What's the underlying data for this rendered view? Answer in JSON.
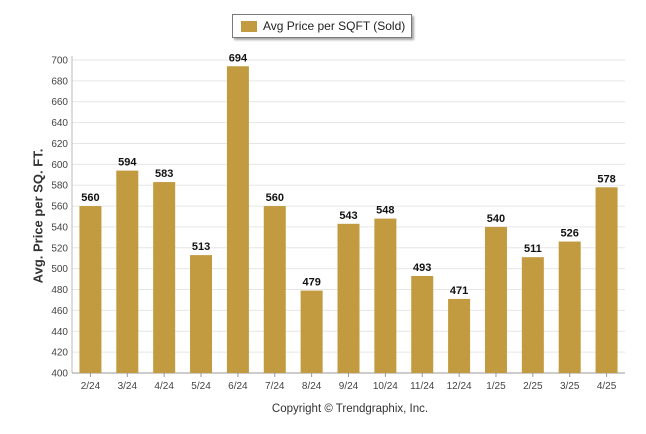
{
  "legend": {
    "label": "Avg Price per SQFT (Sold)",
    "color": "#C29A3F"
  },
  "footer": {
    "copyright": "Copyright © Trendgraphix, Inc."
  },
  "chart_data": {
    "type": "bar",
    "categories": [
      "2/24",
      "3/24",
      "4/24",
      "5/24",
      "6/24",
      "7/24",
      "8/24",
      "9/24",
      "10/24",
      "11/24",
      "12/24",
      "1/25",
      "2/25",
      "3/25",
      "4/25"
    ],
    "series": [
      {
        "name": "Avg Price per SQFT (Sold)",
        "values": [
          560,
          594,
          583,
          513,
          694,
          560,
          479,
          543,
          548,
          493,
          471,
          540,
          511,
          526,
          578
        ]
      }
    ],
    "ylabel": "Avg. Price per SQ. FT.",
    "ylim": [
      400,
      700
    ],
    "yticks": [
      400,
      420,
      440,
      460,
      480,
      500,
      520,
      540,
      560,
      580,
      600,
      620,
      640,
      660,
      680,
      700
    ],
    "grid": true,
    "legend_position": "top-center",
    "bar_color": "#C29A3F"
  }
}
